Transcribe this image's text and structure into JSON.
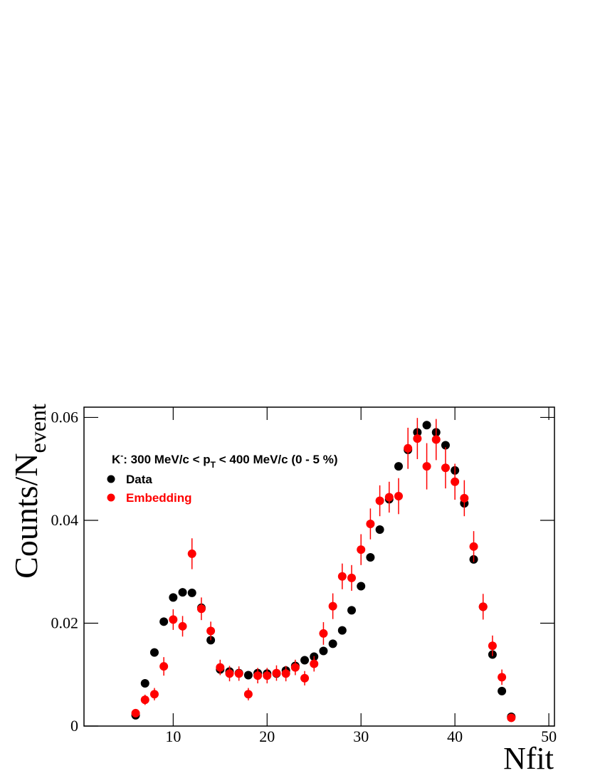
{
  "chart_data": {
    "type": "scatter",
    "xlabel": "Nfit",
    "ylabel": [
      "Counts/N",
      "event"
    ],
    "annotation": [
      "K",
      "-",
      ": 300 MeV/c < p",
      "T",
      " < 400 MeV/c (0 - 5 %)"
    ],
    "legend": "upper left",
    "x": [
      6,
      7,
      8,
      9,
      10,
      11,
      12,
      13,
      14,
      15,
      16,
      17,
      18,
      19,
      20,
      21,
      22,
      23,
      24,
      25,
      26,
      27,
      28,
      29,
      30,
      31,
      32,
      33,
      34,
      35,
      36,
      37,
      38,
      39,
      40,
      41,
      42,
      43,
      44,
      45,
      46
    ],
    "series": [
      {
        "name": "Data",
        "color": "#000000",
        "values": [
          0.0021,
          0.0083,
          0.0143,
          0.0203,
          0.025,
          0.026,
          0.0259,
          0.023,
          0.0167,
          0.011,
          0.0106,
          0.0103,
          0.0099,
          0.0103,
          0.0102,
          0.0102,
          0.0108,
          0.0117,
          0.0128,
          0.0135,
          0.0146,
          0.016,
          0.0186,
          0.0225,
          0.0272,
          0.0328,
          0.0382,
          0.0441,
          0.0505,
          0.0537,
          0.0571,
          0.0585,
          0.0571,
          0.0546,
          0.0497,
          0.0433,
          0.0324,
          0.0232,
          0.0139,
          0.0068,
          0.0018
        ]
      },
      {
        "name": "Embedding",
        "color": "#ff0000",
        "values": [
          0.0025,
          0.0051,
          0.0062,
          0.0116,
          0.0207,
          0.0194,
          0.0335,
          0.0228,
          0.0185,
          0.0114,
          0.0102,
          0.0102,
          0.0062,
          0.0098,
          0.0098,
          0.0103,
          0.0102,
          0.0114,
          0.0093,
          0.0121,
          0.018,
          0.0233,
          0.0291,
          0.0288,
          0.0343,
          0.0393,
          0.0438,
          0.0445,
          0.0447,
          0.054,
          0.0559,
          0.0505,
          0.0557,
          0.0502,
          0.0475,
          0.0443,
          0.0349,
          0.0232,
          0.0156,
          0.0095,
          0.0016
        ],
        "errors": [
          0.0005,
          0.001,
          0.0012,
          0.0018,
          0.002,
          0.002,
          0.003,
          0.0022,
          0.0018,
          0.0015,
          0.0015,
          0.0014,
          0.0012,
          0.0015,
          0.0015,
          0.0015,
          0.0015,
          0.0015,
          0.0014,
          0.0015,
          0.0022,
          0.0025,
          0.0025,
          0.0025,
          0.003,
          0.003,
          0.003,
          0.003,
          0.0035,
          0.004,
          0.004,
          0.0045,
          0.004,
          0.004,
          0.0035,
          0.0035,
          0.003,
          0.0025,
          0.002,
          0.0015,
          0.0005
        ]
      }
    ],
    "xlim": [
      0.5,
      50.6
    ],
    "xticks": [
      10,
      20,
      30,
      40,
      50
    ],
    "ylim": [
      0,
      0.062
    ],
    "yticks": [
      0,
      0.02,
      0.04,
      0.06
    ]
  }
}
